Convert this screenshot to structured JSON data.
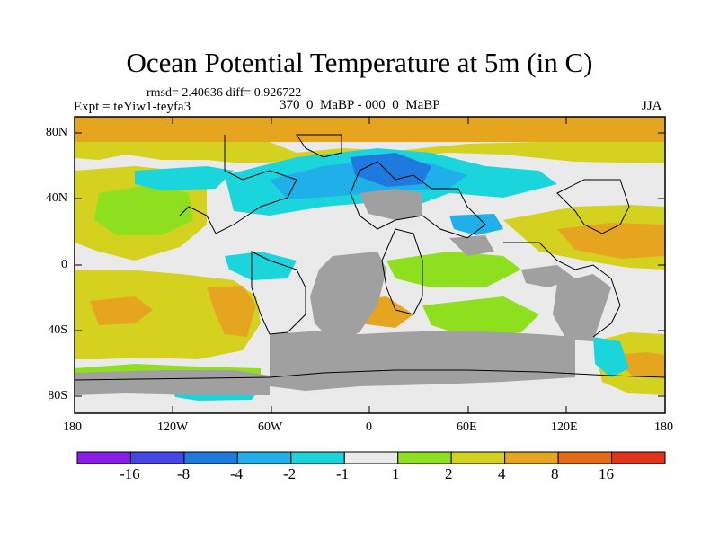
{
  "title": "Ocean Potential Temperature at 5m (in C)",
  "stats": "rmsd= 2.40636 diff= 0.926722",
  "experiment": "Expt = teYiw1-teyfa3",
  "comparison": "370_0_MaBP - 000_0_MaBP",
  "season": "JJA",
  "lon_ticks": [
    "180",
    "120W",
    "60W",
    "0",
    "60E",
    "120E",
    "180"
  ],
  "lat_ticks": [
    "80N",
    "40N",
    "0",
    "40S",
    "80S"
  ],
  "colorbar": {
    "labels": [
      "-16",
      "-8",
      "-4",
      "-2",
      "-1",
      "1",
      "2",
      "4",
      "8",
      "16"
    ],
    "colors": [
      "#8a1ee8",
      "#4646e6",
      "#1f7ae0",
      "#1fb0ea",
      "#1ad6dc",
      "#eaeaea",
      "#8ee01f",
      "#d4d21e",
      "#e6a51e",
      "#e46c17",
      "#e3331c"
    ]
  },
  "map_colors": {
    "land": "#a0a0a0",
    "neutral": "#eaeaea",
    "warm_orange": "#e6a51e",
    "warm_yellow": "#d4d21e",
    "warm_green": "#8ee01f",
    "cool_cyan": "#1ad6dc",
    "cool_lightblue": "#1fb0ea",
    "cool_blue": "#1f7ae0"
  }
}
